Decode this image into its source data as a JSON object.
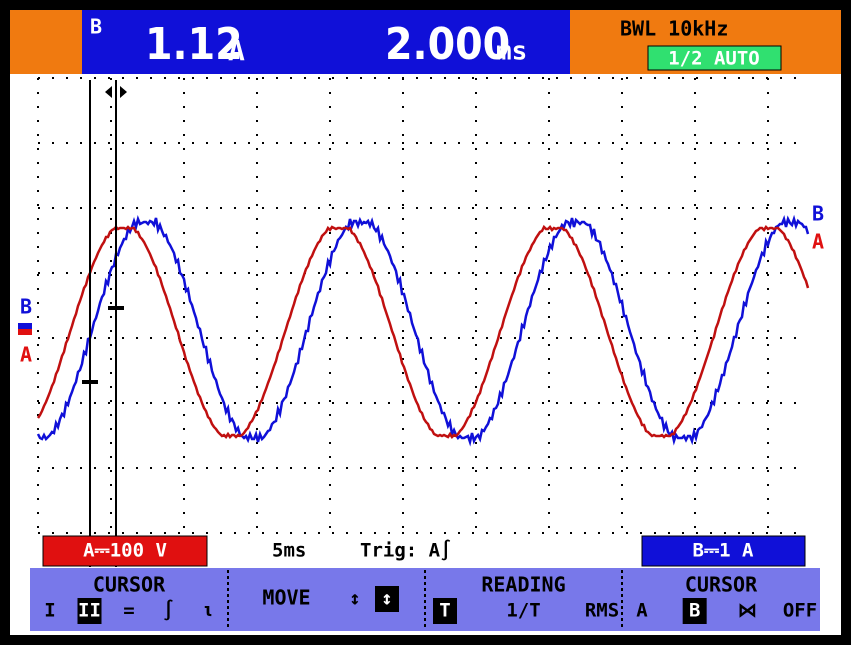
{
  "header": {
    "channel": "B",
    "reading": "1.12",
    "reading_unit": "A",
    "timebase": "2.000",
    "timebase_unit": "ms",
    "bandwidth": "BWL 10kHz",
    "mode": "1/2 AUTO"
  },
  "traces": {
    "left_b": "B",
    "left_a": "A",
    "right_b": "B",
    "right_a": "A"
  },
  "status": {
    "channel_a": "A⎓100 V",
    "timebase": "5ms",
    "trigger": "Trig: A∫",
    "channel_b": "B⎓1 A"
  },
  "menu": [
    {
      "title": "CURSOR",
      "items": [
        "I",
        "II",
        "=",
        "∫",
        "ι"
      ]
    },
    {
      "title": "MOVE",
      "items": [
        "↕",
        "↕"
      ]
    },
    {
      "title": "READING",
      "items": [
        "T",
        "1/T",
        "RMS"
      ]
    },
    {
      "title": "CURSOR",
      "items": [
        "A",
        "B",
        "⋈",
        "OFF"
      ]
    }
  ]
}
